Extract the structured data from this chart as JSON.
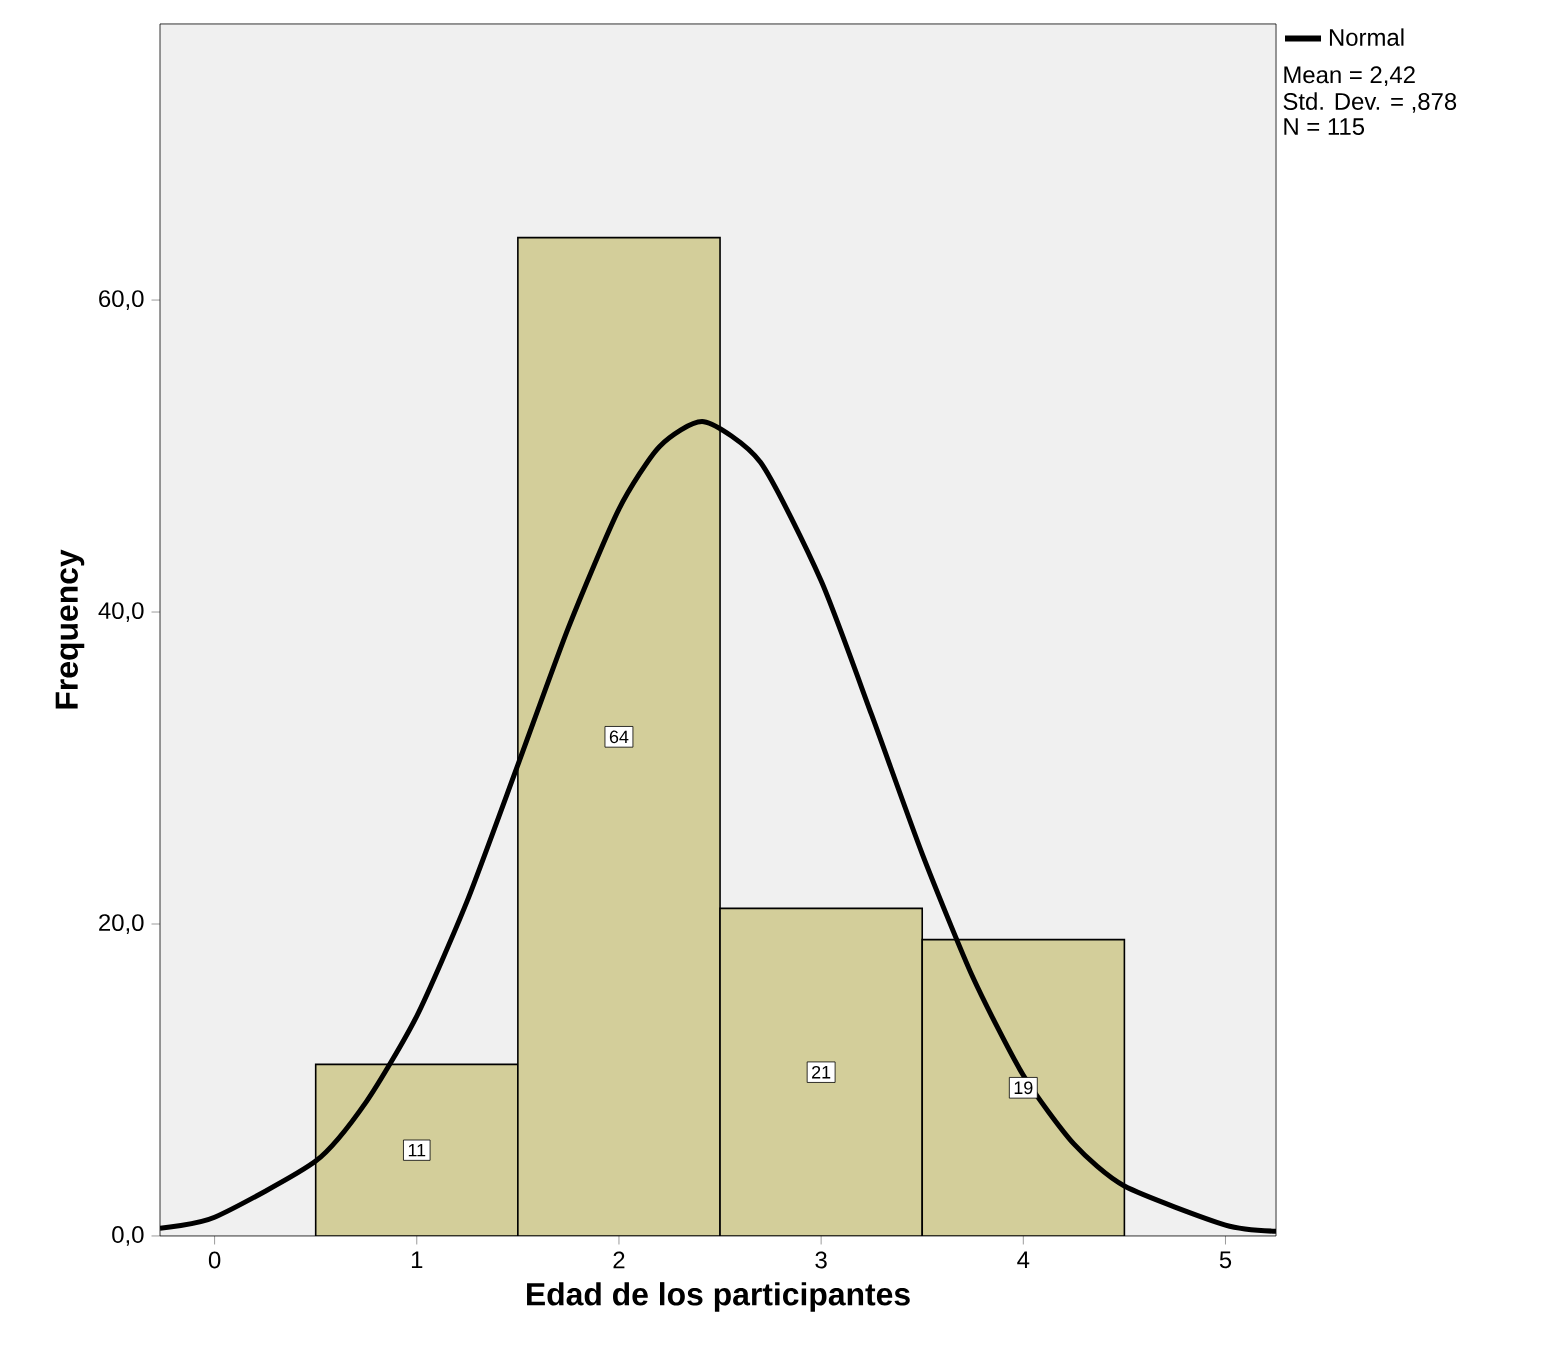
{
  "chart_data": {
    "type": "histogram",
    "xlabel": "Edad de los participantes",
    "ylabel": "Frequency",
    "bins": [
      0.5,
      1.5,
      2.5,
      3.5,
      4.5
    ],
    "values": [
      11,
      64,
      21,
      19
    ],
    "color": "#d3ce9a",
    "value_labels": [
      "11",
      "64",
      "21",
      "19"
    ],
    "series": [
      {
        "name": "Normal",
        "type": "line",
        "color": "#000000",
        "x": [
          -0.27,
          0,
          0.5,
          0.75,
          1,
          1.25,
          1.5,
          1.75,
          2,
          2.2,
          2.42,
          2.7,
          3,
          3.25,
          3.5,
          3.75,
          4,
          4.25,
          4.5,
          5,
          5.25
        ],
        "values": [
          0.5,
          1.2,
          4.8,
          8.6,
          14.1,
          21.5,
          30.2,
          39.0,
          46.6,
          50.6,
          52.2,
          49.6,
          42.0,
          33.4,
          24.5,
          16.6,
          10.3,
          5.9,
          3.2,
          0.7,
          0.3
        ]
      }
    ],
    "xlim": [
      -0.27,
      5.25
    ],
    "ylim": [
      0,
      77.7
    ],
    "xticks": [
      0,
      1,
      2,
      3,
      4,
      5
    ],
    "yticks": [
      {
        "value": 0,
        "label": "0,0"
      },
      {
        "value": 20,
        "label": "20,0"
      },
      {
        "value": 40,
        "label": "40,0"
      },
      {
        "value": 60,
        "label": "60,0"
      }
    ],
    "legend": "top right",
    "grid": false,
    "annotations": [
      "Mean = 2,42",
      "Std. Dev. = ,878",
      "N = 115"
    ]
  }
}
